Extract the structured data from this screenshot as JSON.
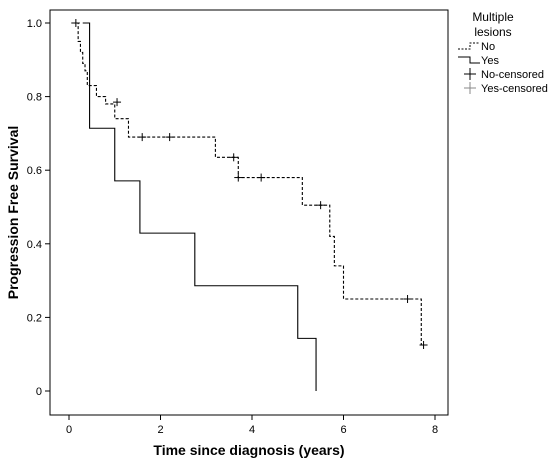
{
  "chart_data": {
    "type": "line",
    "subtype": "kaplan-meier-step",
    "xlabel": "Time since diagnosis (years)",
    "ylabel": "Progression Free Survival",
    "xlim": [
      0,
      8.4
    ],
    "ylim": [
      0,
      1.0
    ],
    "xticks": [
      "0",
      "2",
      "4",
      "6",
      "8"
    ],
    "xtick_values": [
      0,
      2,
      4,
      6,
      8
    ],
    "yticks": [
      "0",
      "0.2",
      "0.4",
      "0.6",
      "0.8",
      "1.0"
    ],
    "ytick_values": [
      0,
      0.2,
      0.4,
      0.6,
      0.8,
      1.0
    ],
    "grid": false,
    "legend": {
      "title": "Multiple lesions",
      "title_lines": [
        "Multiple",
        "lesions"
      ],
      "placement": "top-right-outside",
      "entries": [
        "No",
        "Yes",
        "No-censored",
        "Yes-censored"
      ]
    },
    "series": [
      {
        "name": "No",
        "style": "dashed",
        "color": "#000000",
        "x": [
          0.05,
          0.15,
          0.2,
          0.25,
          0.3,
          0.35,
          0.4,
          0.5,
          0.6,
          0.7,
          0.8,
          1.0,
          1.3,
          2.5,
          3.2,
          3.5,
          3.7,
          4.8,
          5.1,
          5.6,
          5.7,
          5.8,
          5.9,
          6.0,
          7.5,
          7.7
        ],
        "y": [
          1.0,
          1.0,
          0.95,
          0.92,
          0.89,
          0.87,
          0.83,
          0.83,
          0.8,
          0.8,
          0.78,
          0.74,
          0.69,
          0.69,
          0.635,
          0.635,
          0.58,
          0.58,
          0.505,
          0.505,
          0.42,
          0.34,
          0.34,
          0.25,
          0.25,
          0.125
        ],
        "censored": [
          {
            "x": 0.15,
            "y": 1.0
          },
          {
            "x": 1.05,
            "y": 0.785
          },
          {
            "x": 1.6,
            "y": 0.69
          },
          {
            "x": 2.2,
            "y": 0.69
          },
          {
            "x": 3.6,
            "y": 0.635
          },
          {
            "x": 3.7,
            "y": 0.58
          },
          {
            "x": 4.2,
            "y": 0.58
          },
          {
            "x": 5.5,
            "y": 0.505
          },
          {
            "x": 7.4,
            "y": 0.25
          },
          {
            "x": 7.75,
            "y": 0.125
          }
        ]
      },
      {
        "name": "Yes",
        "style": "solid",
        "color": "#000000",
        "x": [
          0.3,
          0.45,
          1.0,
          1.55,
          2.75,
          5.0,
          5.4,
          5.4
        ],
        "y": [
          1.0,
          0.714,
          0.571,
          0.429,
          0.286,
          0.143,
          0.143,
          0.0
        ],
        "censored": []
      }
    ]
  }
}
